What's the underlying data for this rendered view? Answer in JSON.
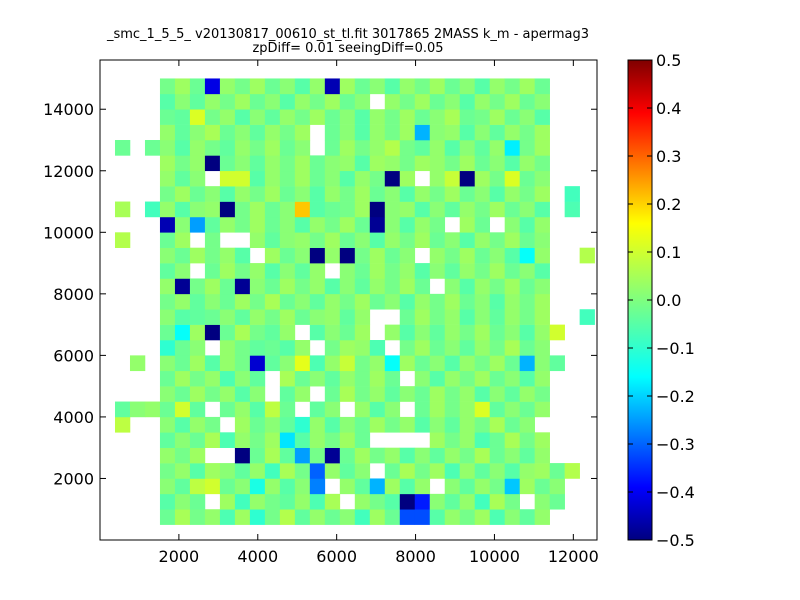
{
  "chart_data": {
    "type": "heatmap",
    "title": "_smc_1_5_5_ v20130817_00610_st_tl.fit 3017865 2MASS k_m - apermag3",
    "subtitle": "zpDiff= 0.01 seeingDiff=0.05",
    "xlabel": "",
    "ylabel": "",
    "xlim": [
      0,
      12600
    ],
    "ylim": [
      0,
      15600
    ],
    "xticks": [
      2000,
      4000,
      6000,
      8000,
      10000,
      12000
    ],
    "yticks": [
      2000,
      4000,
      6000,
      8000,
      10000,
      12000,
      14000
    ],
    "colormap": "jet",
    "colorbar": {
      "vmin": -0.5,
      "vmax": 0.5,
      "ticks": [
        "0.5",
        "0.4",
        "0.3",
        "0.2",
        "0.1",
        "0.0",
        "−0.1",
        "−0.2",
        "−0.3",
        "−0.4",
        "−0.5"
      ],
      "tick_values": [
        0.5,
        0.4,
        0.3,
        0.2,
        0.1,
        0.0,
        -0.1,
        -0.2,
        -0.3,
        -0.4,
        -0.5
      ]
    },
    "bin_width": 380,
    "bin_height": 500,
    "x_start": 0,
    "y_start": 0,
    "columns": 33,
    "rows": 31,
    "grid": false,
    "values": [
      [
        null,
        null,
        null,
        null,
        null,
        null,
        null,
        null,
        null,
        null,
        null,
        null,
        null,
        null,
        null,
        null,
        null,
        null,
        null,
        null,
        null,
        null,
        null,
        null,
        null,
        null,
        null,
        null,
        null,
        null,
        null,
        null,
        null
      ],
      [
        null,
        null,
        null,
        null,
        -0.02,
        0.04,
        -0.01,
        0.02,
        -0.05,
        0.03,
        -0.08,
        -0.01,
        0.05,
        -0.03,
        0.02,
        -0.02,
        0.01,
        -0.06,
        0.03,
        -0.02,
        -0.3,
        -0.3,
        -0.04,
        0.02,
        -0.01,
        0.03,
        -0.05,
        0.01,
        -0.03,
        0.02,
        null,
        null,
        null
      ],
      [
        null,
        null,
        null,
        null,
        -0.04,
        0.01,
        -0.02,
        null,
        0.03,
        -0.06,
        0.02,
        -0.01,
        -0.03,
        0.02,
        -0.05,
        0.04,
        null,
        0.02,
        -0.01,
        -0.04,
        -0.5,
        -0.35,
        0.01,
        -0.03,
        0.02,
        -0.06,
        0.04,
        -0.01,
        null,
        0.01,
        -0.02,
        null,
        null
      ],
      [
        null,
        null,
        null,
        null,
        0.01,
        -0.03,
        0.06,
        0.08,
        -0.02,
        0.01,
        -0.1,
        0.02,
        -0.04,
        0.01,
        -0.25,
        null,
        0.02,
        -0.03,
        -0.2,
        0.03,
        -0.04,
        0.02,
        null,
        0.01,
        -0.03,
        0.02,
        -0.01,
        -0.18,
        0.03,
        -0.02,
        0.01,
        null,
        null
      ],
      [
        null,
        null,
        null,
        null,
        -0.01,
        0.02,
        -0.04,
        0.03,
        0.01,
        -0.03,
        0.02,
        -0.06,
        0.04,
        -0.01,
        -0.28,
        0.02,
        -0.03,
        0.01,
        null,
        -0.02,
        0.04,
        -0.01,
        0.03,
        -0.05,
        0.02,
        -0.03,
        0.01,
        -0.04,
        0.02,
        0.03,
        -0.02,
        0.05,
        null
      ],
      [
        null,
        null,
        null,
        null,
        0.02,
        -0.01,
        0.03,
        null,
        null,
        -0.5,
        -0.02,
        0.04,
        -0.03,
        -0.22,
        -0.01,
        -0.48,
        -0.02,
        0.03,
        -0.01,
        0.02,
        -0.04,
        0.01,
        -0.03,
        0.02,
        -0.01,
        0.04,
        -0.02,
        0.01,
        -0.03,
        0.02,
        null,
        null,
        null
      ],
      [
        null,
        null,
        null,
        null,
        -0.03,
        0.01,
        -0.02,
        0.04,
        -0.05,
        0.02,
        -0.01,
        0.03,
        -0.15,
        -0.04,
        0.02,
        -0.01,
        0.03,
        -0.02,
        null,
        null,
        null,
        null,
        0.03,
        -0.01,
        0.02,
        -0.05,
        -0.02,
        0.04,
        -0.01,
        0.03,
        null,
        null,
        null
      ],
      [
        null,
        0.06,
        null,
        null,
        0.01,
        -0.04,
        0.02,
        -0.01,
        null,
        0.03,
        -0.02,
        0.01,
        -0.03,
        -0.08,
        0.02,
        -0.04,
        0.01,
        -0.02,
        0.03,
        -0.01,
        0.02,
        -0.04,
        0.01,
        -0.03,
        0.02,
        -0.01,
        0.04,
        -0.02,
        0.01,
        null,
        null,
        null,
        null
      ],
      [
        null,
        -0.03,
        0.01,
        0.02,
        -0.02,
        0.08,
        -0.03,
        null,
        -0.02,
        0.02,
        -0.04,
        0.06,
        -0.02,
        null,
        -0.03,
        0.01,
        null,
        0.02,
        -0.04,
        0.01,
        null,
        -0.02,
        0.03,
        -0.01,
        0.02,
        0.09,
        -0.03,
        0.01,
        -0.02,
        0.02,
        null,
        null,
        null
      ],
      [
        null,
        null,
        null,
        null,
        0.01,
        -0.02,
        0.03,
        -0.01,
        0.02,
        -0.04,
        0.01,
        null,
        -0.03,
        0.02,
        null,
        -0.02,
        0.04,
        -0.01,
        0.02,
        -0.03,
        0.01,
        -0.02,
        0.03,
        -0.01,
        0.02,
        -0.04,
        0.01,
        -0.03,
        0.02,
        -0.01,
        null,
        null,
        null
      ],
      [
        null,
        null,
        null,
        null,
        -0.02,
        0.03,
        -0.01,
        0.02,
        -0.05,
        0.01,
        -0.03,
        null,
        0.04,
        -0.02,
        0.01,
        -0.03,
        0.02,
        -0.01,
        0.03,
        -0.02,
        null,
        0.01,
        -0.04,
        0.02,
        -0.01,
        0.03,
        -0.02,
        0.01,
        -0.04,
        0.02,
        null,
        null,
        null
      ],
      [
        null,
        null,
        0.02,
        null,
        0.01,
        -0.02,
        0.03,
        -0.04,
        0.02,
        -0.01,
        -0.42,
        -0.03,
        0.01,
        0.1,
        -0.05,
        0.02,
        0.07,
        -0.01,
        0.02,
        -0.12,
        0.03,
        -0.02,
        0.01,
        -0.04,
        0.02,
        -0.01,
        0.03,
        -0.02,
        -0.2,
        0.01,
        -0.03,
        null,
        null
      ],
      [
        null,
        null,
        null,
        null,
        -0.08,
        -0.02,
        0.01,
        null,
        0.02,
        -0.01,
        -0.03,
        -0.02,
        -0.04,
        0.02,
        null,
        -0.01,
        0.03,
        0.02,
        -0.05,
        null,
        -0.01,
        0.03,
        -0.02,
        0.01,
        -0.03,
        0.02,
        -0.01,
        0.04,
        -0.02,
        0.01,
        null,
        null,
        null
      ],
      [
        null,
        null,
        null,
        null,
        -0.02,
        -0.12,
        0.03,
        -0.5,
        -0.02,
        0.04,
        -0.01,
        -0.03,
        0.02,
        null,
        -0.04,
        0.01,
        -0.02,
        0.03,
        null,
        0.02,
        -0.04,
        0.01,
        -0.03,
        0.02,
        -0.01,
        0.03,
        -0.02,
        0.01,
        -0.04,
        0.02,
        0.08,
        null,
        null
      ],
      [
        null,
        null,
        null,
        null,
        0.01,
        -0.04,
        -0.03,
        -0.02,
        0.01,
        -0.03,
        0.02,
        -0.01,
        0.03,
        -0.02,
        0.01,
        0.02,
        -0.03,
        0.02,
        null,
        null,
        -0.02,
        0.03,
        -0.01,
        0.02,
        -0.04,
        0.01,
        -0.03,
        0.02,
        -0.01,
        0.03,
        null,
        null,
        -0.06
      ],
      [
        null,
        null,
        null,
        null,
        -0.01,
        0.02,
        -0.03,
        0.01,
        -0.02,
        0.03,
        -0.01,
        0.04,
        -0.02,
        0.01,
        -0.03,
        0.02,
        -0.01,
        0.03,
        -0.02,
        0.01,
        -0.04,
        0.02,
        -0.01,
        0.03,
        -0.02,
        0.01,
        -0.04,
        0.02,
        -0.01,
        0.03,
        null,
        null,
        null
      ],
      [
        null,
        null,
        null,
        null,
        0.02,
        -0.48,
        -0.01,
        0.03,
        -0.02,
        -0.48,
        0.01,
        -0.02,
        0.03,
        -0.01,
        0.02,
        -0.04,
        0.01,
        -0.03,
        0.02,
        -0.01,
        0.03,
        -0.02,
        null,
        0.01,
        -0.04,
        0.02,
        -0.01,
        0.03,
        -0.02,
        0.01,
        null,
        null,
        null
      ],
      [
        null,
        null,
        null,
        null,
        -0.03,
        0.01,
        null,
        -0.02,
        0.03,
        -0.01,
        0.02,
        -0.04,
        0.01,
        -0.03,
        0.02,
        null,
        0.01,
        -0.02,
        0.03,
        -0.01,
        0.02,
        -0.04,
        0.01,
        -0.03,
        0.02,
        -0.01,
        0.03,
        -0.02,
        0.01,
        -0.04,
        null,
        null,
        null
      ],
      [
        null,
        null,
        null,
        null,
        0.01,
        -0.02,
        0.03,
        -0.01,
        0.02,
        -0.04,
        null,
        0.03,
        -0.02,
        0.01,
        -0.5,
        0.02,
        -0.5,
        -0.01,
        0.03,
        -0.02,
        0.01,
        null,
        0.02,
        -0.01,
        0.03,
        -0.02,
        0.01,
        -0.04,
        -0.12,
        0.02,
        null,
        null,
        0.05
      ],
      [
        null,
        0.05,
        null,
        null,
        -0.02,
        0.03,
        null,
        -0.01,
        null,
        null,
        0.02,
        -0.03,
        0.01,
        0.02,
        -0.01,
        0.03,
        -0.02,
        0.01,
        -0.04,
        0.02,
        -0.01,
        0.03,
        -0.02,
        0.01,
        -0.04,
        0.02,
        -0.01,
        0.03,
        -0.02,
        0.01,
        null,
        null,
        null
      ],
      [
        null,
        null,
        null,
        null,
        -0.45,
        0.01,
        -0.22,
        -0.03,
        0.02,
        -0.01,
        0.03,
        -0.02,
        0.01,
        -0.04,
        0.02,
        -0.01,
        0.03,
        -0.02,
        -0.48,
        0.01,
        -0.04,
        0.02,
        -0.01,
        null,
        0.03,
        -0.02,
        null,
        0.01,
        -0.04,
        0.02,
        null,
        null,
        null
      ],
      [
        null,
        0.04,
        null,
        -0.06,
        0.02,
        -0.04,
        0.01,
        0.02,
        -0.5,
        -0.01,
        0.03,
        -0.02,
        0.01,
        0.18,
        -0.04,
        -0.02,
        -0.01,
        0.03,
        -0.5,
        0.01,
        0.02,
        -0.04,
        0.01,
        -0.03,
        0.02,
        -0.01,
        0.03,
        -0.02,
        0.01,
        -0.04,
        null,
        -0.05,
        null
      ],
      [
        null,
        null,
        null,
        null,
        -0.01,
        0.03,
        -0.02,
        0.01,
        -0.04,
        0.02,
        -0.01,
        0.03,
        -0.02,
        0.01,
        -0.04,
        0.02,
        -0.01,
        0.03,
        -0.02,
        0.01,
        -0.04,
        0.02,
        -0.01,
        0.03,
        -0.02,
        0.01,
        -0.04,
        0.02,
        -0.01,
        0.03,
        null,
        -0.06,
        null
      ],
      [
        null,
        null,
        null,
        null,
        0.02,
        -0.03,
        0.01,
        null,
        0.08,
        0.08,
        -0.04,
        0.02,
        -0.01,
        0.03,
        -0.02,
        0.01,
        -0.04,
        0.02,
        -0.01,
        -0.5,
        0.03,
        null,
        0.02,
        0.07,
        -0.5,
        0.03,
        -0.01,
        0.09,
        -0.02,
        0.01,
        null,
        null,
        null
      ],
      [
        null,
        null,
        null,
        null,
        0.03,
        -0.01,
        0.02,
        -0.5,
        -0.02,
        0.01,
        -0.03,
        0.02,
        -0.01,
        0.03,
        -0.02,
        0.01,
        0.02,
        -0.04,
        0.03,
        0.02,
        -0.01,
        0.03,
        0.02,
        -0.01,
        0.03,
        -0.02,
        0.01,
        -0.04,
        0.02,
        -0.01,
        null,
        null,
        null
      ],
      [
        null,
        -0.02,
        null,
        -0.02,
        0.01,
        -0.04,
        0.02,
        -0.01,
        -0.03,
        0.02,
        -0.01,
        0.03,
        -0.02,
        0.01,
        null,
        -0.02,
        0.03,
        -0.01,
        0.02,
        0.05,
        -0.01,
        -0.03,
        0.02,
        -0.04,
        0.01,
        -0.03,
        0.02,
        -0.14,
        -0.01,
        0.03,
        null,
        null,
        null
      ],
      [
        null,
        null,
        null,
        null,
        0.02,
        -0.03,
        0.01,
        0.04,
        -0.02,
        0.01,
        -0.03,
        0.02,
        -0.01,
        0.03,
        null,
        -0.02,
        0.01,
        -0.04,
        0.02,
        -0.01,
        0.03,
        -0.2,
        0.01,
        0.02,
        -0.04,
        0.01,
        -0.03,
        0.02,
        -0.01,
        0.03,
        null,
        null,
        null
      ],
      [
        null,
        null,
        null,
        null,
        -0.02,
        -0.03,
        0.09,
        -0.01,
        0.02,
        -0.04,
        0.01,
        -0.03,
        0.02,
        -0.01,
        0.03,
        -0.02,
        0.01,
        -0.04,
        0.02,
        -0.01,
        0.03,
        -0.02,
        0.01,
        0.04,
        -0.02,
        -0.01,
        0.03,
        -0.02,
        0.01,
        -0.04,
        null,
        null,
        null
      ],
      [
        null,
        null,
        null,
        null,
        -0.04,
        0.01,
        -0.03,
        0.02,
        -0.01,
        0.03,
        -0.02,
        0.01,
        -0.04,
        0.02,
        -0.01,
        0.03,
        -0.02,
        0.01,
        null,
        0.02,
        -0.01,
        0.03,
        -0.02,
        0.01,
        -0.04,
        0.02,
        -0.01,
        0.03,
        -0.02,
        0.01,
        null,
        null,
        null
      ],
      [
        null,
        null,
        null,
        null,
        -0.01,
        0.03,
        -0.02,
        -0.4,
        0.02,
        -0.01,
        0.03,
        -0.02,
        0.01,
        -0.04,
        0.02,
        -0.45,
        0.03,
        -0.02,
        0.01,
        -0.04,
        0.02,
        -0.01,
        0.03,
        -0.02,
        0.01,
        -0.04,
        0.02,
        -0.01,
        0.03,
        -0.02,
        null,
        null,
        null
      ],
      [
        null,
        null,
        null,
        null,
        null,
        null,
        null,
        null,
        null,
        null,
        null,
        null,
        null,
        null,
        null,
        null,
        null,
        null,
        null,
        null,
        null,
        null,
        null,
        null,
        null,
        null,
        null,
        null,
        null,
        null,
        null,
        null,
        null
      ]
    ]
  }
}
